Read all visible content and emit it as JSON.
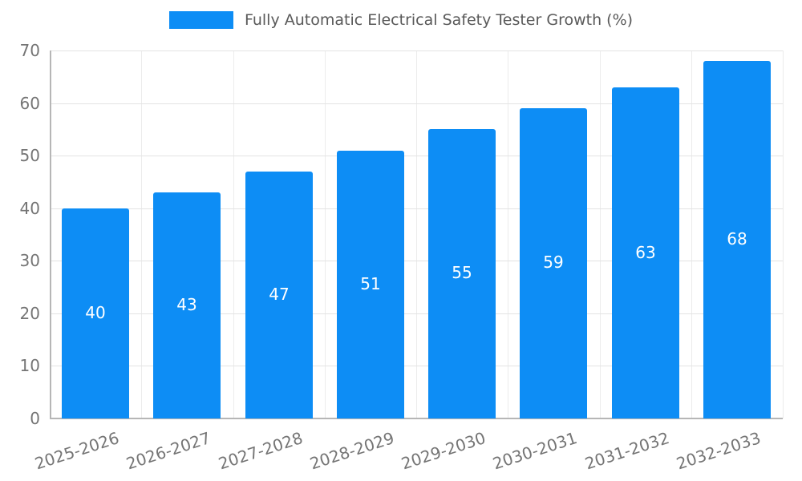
{
  "legend": {
    "label": "Fully Automatic Electrical Safety Tester Growth (%)",
    "swatch_color": "#0d8df5"
  },
  "chart_data": {
    "type": "bar",
    "title": "Fully Automatic Electrical Safety Tester Growth (%)",
    "categories": [
      "2025-2026",
      "2026-2027",
      "2027-2028",
      "2028-2029",
      "2029-2030",
      "2030-2031",
      "2031-2032",
      "2032-2033"
    ],
    "values": [
      40,
      43,
      47,
      51,
      55,
      59,
      63,
      68
    ],
    "xlabel": "",
    "ylabel": "",
    "ylim": [
      0,
      70
    ],
    "yticks": [
      0,
      10,
      20,
      30,
      40,
      50,
      60,
      70
    ],
    "bar_color": "#0d8df5",
    "value_label_color": "#ffffff",
    "grid": true,
    "legend_position": "top"
  }
}
